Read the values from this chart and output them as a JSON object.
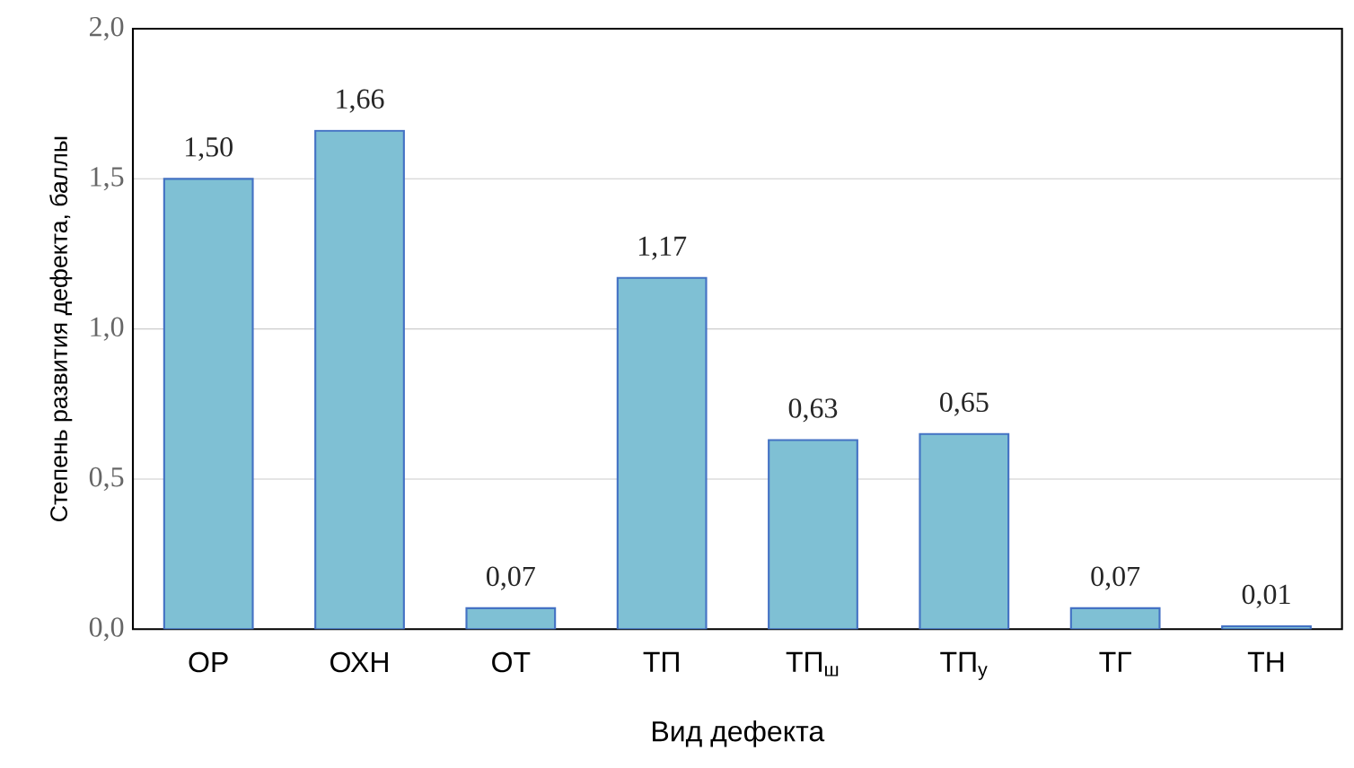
{
  "chart_data": {
    "type": "bar",
    "xlabel": "Вид дефекта",
    "ylabel": "Степень развития дефекта, баллы",
    "categories": [
      "ОР",
      "ОХН",
      "ОТ",
      "ТП",
      "ТП$_{ш}$",
      "ТП$_{у}$",
      "ТГ",
      "ТН"
    ],
    "values": [
      1.5,
      1.66,
      0.07,
      1.17,
      0.63,
      0.65,
      0.07,
      0.01
    ],
    "value_labels": [
      "1,50",
      "1,66",
      "0,07",
      "1,17",
      "0,63",
      "0,65",
      "0,07",
      "0,01"
    ],
    "color": "#7fc0d4",
    "ylim": [
      0,
      2
    ],
    "yticks": [
      {
        "value": 0,
        "label": "0,0"
      },
      {
        "value": 0.5,
        "label": "0,5"
      },
      {
        "value": 1,
        "label": "1,0"
      },
      {
        "value": 1.5,
        "label": "1,5"
      },
      {
        "value": 2,
        "label": "2,0"
      }
    ],
    "grid": "y"
  }
}
